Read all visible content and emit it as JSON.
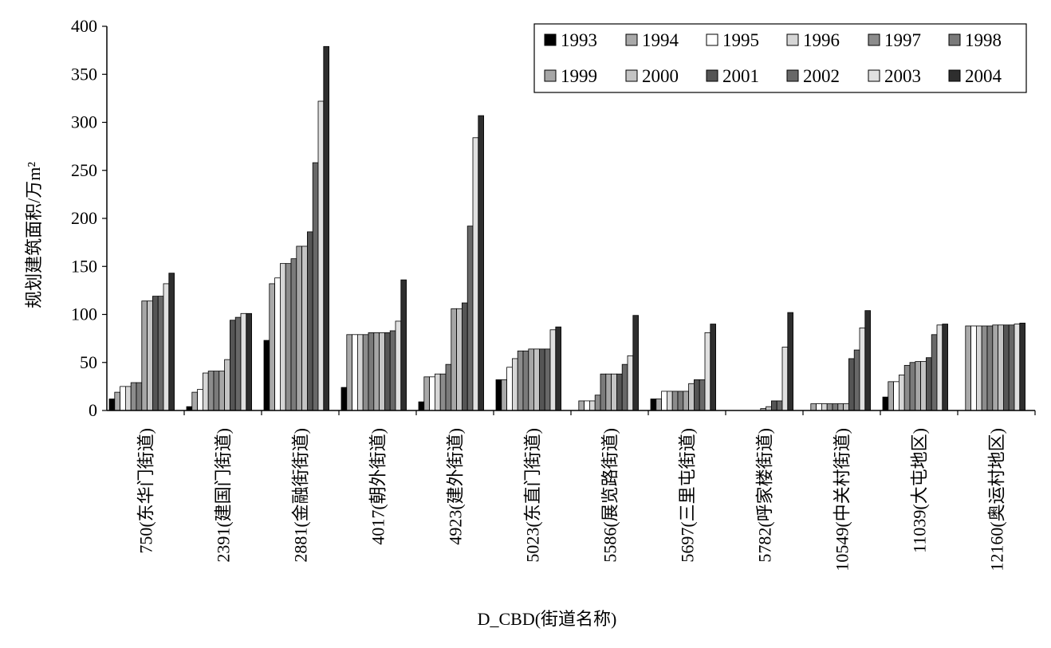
{
  "chart_data": {
    "type": "bar",
    "title": "",
    "xlabel": "D_CBD(街道名称)",
    "ylabel": "规划建筑面积/万m²",
    "ylim": [
      0,
      400
    ],
    "yticks": [
      "0",
      "50",
      "100",
      "150",
      "200",
      "250",
      "300",
      "350",
      "400"
    ],
    "grid": false,
    "legend_position": "top-right",
    "categories": [
      "750(东华门街道)",
      "2391(建国门街道)",
      "2881(金融街街道)",
      "4017(朝外街道)",
      "4923(建外街道)",
      "5023(东直门街道)",
      "5586(展览路街道)",
      "5697(三里屯街道)",
      "5782(呼家楼街道)",
      "10549(中关村街道)",
      "11039(大屯地区)",
      "12160(奥运村地区)"
    ],
    "series": [
      {
        "name": "1993",
        "color": "#000000",
        "values": [
          12,
          4,
          73,
          24,
          9,
          32,
          0,
          12,
          0,
          0,
          14,
          0
        ]
      },
      {
        "name": "1994",
        "color": "#a9a9a9",
        "values": [
          19,
          19,
          132,
          79,
          35,
          32,
          10,
          12,
          0,
          7,
          30,
          88
        ]
      },
      {
        "name": "1995",
        "color": "#ffffff",
        "values": [
          25,
          22,
          138,
          79,
          35,
          45,
          10,
          20,
          0,
          7,
          30,
          88
        ]
      },
      {
        "name": "1996",
        "color": "#d6d6d6",
        "values": [
          25,
          39,
          153,
          79,
          38,
          54,
          10,
          20,
          0,
          7,
          37,
          88
        ]
      },
      {
        "name": "1997",
        "color": "#8c8c8c",
        "values": [
          29,
          41,
          153,
          79,
          38,
          62,
          16,
          20,
          0,
          7,
          47,
          88
        ]
      },
      {
        "name": "1998",
        "color": "#7a7a7a",
        "values": [
          29,
          41,
          158,
          81,
          48,
          62,
          38,
          20,
          0,
          7,
          50,
          88
        ]
      },
      {
        "name": "1999",
        "color": "#a6a6a6",
        "values": [
          114,
          41,
          171,
          81,
          106,
          64,
          38,
          20,
          2,
          7,
          51,
          89
        ]
      },
      {
        "name": "2000",
        "color": "#c4c4c4",
        "values": [
          114,
          53,
          171,
          81,
          106,
          64,
          38,
          28,
          4,
          7,
          51,
          89
        ]
      },
      {
        "name": "2001",
        "color": "#555555",
        "values": [
          119,
          94,
          186,
          81,
          112,
          64,
          38,
          32,
          10,
          54,
          55,
          89
        ]
      },
      {
        "name": "2002",
        "color": "#686868",
        "values": [
          119,
          97,
          258,
          83,
          192,
          64,
          48,
          32,
          10,
          63,
          79,
          89
        ]
      },
      {
        "name": "2003",
        "color": "#e0e0e0",
        "values": [
          132,
          101,
          322,
          93,
          284,
          84,
          57,
          81,
          66,
          86,
          89,
          90
        ]
      },
      {
        "name": "2004",
        "color": "#2e2e2e",
        "values": [
          143,
          101,
          379,
          136,
          307,
          87,
          99,
          90,
          102,
          104,
          90,
          91
        ]
      }
    ]
  }
}
